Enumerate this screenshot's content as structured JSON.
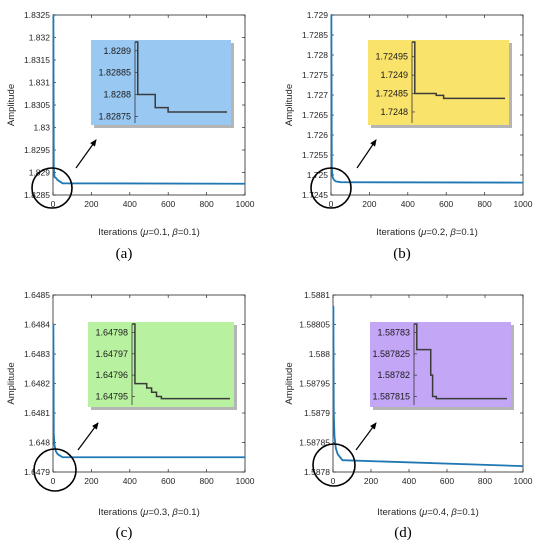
{
  "figure": {
    "panels": [
      "(a)",
      "(b)",
      "(c)",
      "(d)"
    ]
  },
  "chart_data": [
    {
      "type": "line",
      "panel_label": "(a)",
      "xlabel_parts": [
        "Iterations (",
        "μ",
        "=0.1, ",
        "β",
        "=0.1)"
      ],
      "ylabel": "Amplitude",
      "xlim": [
        0,
        1000
      ],
      "ylim": [
        1.8285,
        1.8325
      ],
      "xticks": [
        0,
        200,
        400,
        600,
        800,
        1000
      ],
      "yticks": [
        1.8285,
        1.829,
        1.8295,
        1.83,
        1.8305,
        1.831,
        1.8315,
        1.832,
        1.8325
      ],
      "ytick_labels": [
        "1.8285",
        "1.829",
        "1.8295",
        "1.83",
        "1.8305",
        "1.831",
        "1.8315",
        "1.832",
        "1.8325"
      ],
      "series": [
        {
          "color": "#1f77b4",
          "x": [
            0,
            2,
            4,
            8,
            15,
            25,
            50,
            1000
          ],
          "y": [
            1.8325,
            1.8325,
            1.8291,
            1.8289,
            1.82888,
            1.82883,
            1.82876,
            1.82875
          ]
        }
      ],
      "inset": {
        "color": "#99c9f2",
        "xlim": [
          0,
          1000
        ],
        "ylim": [
          1.828735,
          1.82892
        ],
        "yticks": [
          1.8289,
          1.82885,
          1.8288,
          1.82875
        ],
        "ytick_labels": [
          "1.8289",
          "1.82885",
          "1.8288",
          "1.82875"
        ],
        "x": [
          0,
          30,
          30,
          220,
          220,
          360,
          360,
          1000
        ],
        "y": [
          1.82892,
          1.82892,
          1.8288,
          1.8288,
          1.82877,
          1.82877,
          1.82876,
          1.82876
        ]
      }
    },
    {
      "type": "line",
      "panel_label": "(b)",
      "xlabel_parts": [
        "Iterations (",
        "μ",
        "=0.2, ",
        "β",
        "=0.1)"
      ],
      "ylabel": "Amplitude",
      "xlim": [
        0,
        1000
      ],
      "ylim": [
        1.7245,
        1.729
      ],
      "xticks": [
        0,
        200,
        400,
        600,
        800,
        1000
      ],
      "yticks": [
        1.7245,
        1.725,
        1.7255,
        1.726,
        1.7265,
        1.727,
        1.7275,
        1.728,
        1.7285,
        1.729
      ],
      "ytick_labels": [
        "1.7245",
        "1.725",
        "1.7255",
        "1.726",
        "1.7265",
        "1.727",
        "1.7275",
        "1.728",
        "1.7285",
        "1.729"
      ],
      "series": [
        {
          "color": "#1f77b4",
          "x": [
            0,
            2,
            4,
            8,
            15,
            25,
            50,
            1000
          ],
          "y": [
            1.729,
            1.729,
            1.7252,
            1.72495,
            1.72488,
            1.72484,
            1.72482,
            1.72481
          ]
        }
      ],
      "inset": {
        "color": "#fae36b",
        "xlim": [
          0,
          1000
        ],
        "ylim": [
          1.72477,
          1.72499
        ],
        "yticks": [
          1.72495,
          1.7249,
          1.72485,
          1.7248
        ],
        "ytick_labels": [
          "1.72495",
          "1.7249",
          "1.72485",
          "1.7248"
        ],
        "x": [
          0,
          30,
          30,
          260,
          260,
          340,
          340,
          1000
        ],
        "y": [
          1.72499,
          1.72499,
          1.72485,
          1.72485,
          1.724845,
          1.724845,
          1.724837,
          1.724837
        ]
      }
    },
    {
      "type": "line",
      "panel_label": "(c)",
      "xlabel_parts": [
        "Iterations (",
        "μ",
        "=0.3, ",
        "β",
        "=0.1)"
      ],
      "ylabel": "Amplitude",
      "xlim": [
        0,
        1000
      ],
      "ylim": [
        1.6479,
        1.6485
      ],
      "xticks": [
        0,
        200,
        400,
        600,
        800,
        1000
      ],
      "yticks": [
        1.6479,
        1.648,
        1.6481,
        1.6482,
        1.6483,
        1.6484,
        1.6485
      ],
      "ytick_labels": [
        "1.6479",
        "1.648",
        "1.6481",
        "1.6482",
        "1.6483",
        "1.6484",
        "1.6485"
      ],
      "series": [
        {
          "color": "#1f77b4",
          "x": [
            0,
            2,
            4,
            8,
            15,
            25,
            50,
            1000
          ],
          "y": [
            1.6484,
            1.6484,
            1.64803,
            1.64799,
            1.64797,
            1.64796,
            1.64795,
            1.64795
          ]
        }
      ],
      "inset": {
        "color": "#b8f2a0",
        "xlim": [
          0,
          1000
        ],
        "ylim": [
          1.647946,
          1.647984
        ],
        "yticks": [
          1.64798,
          1.64797,
          1.64796,
          1.64795
        ],
        "ytick_labels": [
          "1.64798",
          "1.64797",
          "1.64796",
          "1.64795"
        ],
        "x": [
          0,
          30,
          30,
          150,
          150,
          200,
          200,
          250,
          250,
          300,
          300,
          1000
        ],
        "y": [
          1.647984,
          1.647984,
          1.647956,
          1.647956,
          1.647954,
          1.647954,
          1.647952,
          1.647952,
          1.64795,
          1.64795,
          1.647949,
          1.647949
        ]
      }
    },
    {
      "type": "line",
      "panel_label": "(d)",
      "xlabel_parts": [
        "Iterations (",
        "μ",
        "=0.4, ",
        "β",
        "=0.1)"
      ],
      "ylabel": "Amplitude",
      "xlim": [
        0,
        1000
      ],
      "ylim": [
        1.5878,
        1.5881
      ],
      "xticks": [
        0,
        200,
        400,
        600,
        800,
        1000
      ],
      "yticks": [
        1.5878,
        1.58785,
        1.5879,
        1.58795,
        1.588,
        1.58805,
        1.5881
      ],
      "ytick_labels": [
        "1.5878",
        "1.58785",
        "1.5879",
        "1.58795",
        "1.588",
        "1.58805",
        "1.5881"
      ],
      "series": [
        {
          "color": "#1f77b4",
          "x": [
            0,
            2,
            4,
            8,
            15,
            25,
            50,
            1000
          ],
          "y": [
            1.58808,
            1.58808,
            1.5879,
            1.58786,
            1.58784,
            1.58783,
            1.58782,
            1.58781
          ]
        }
      ],
      "inset": {
        "color": "#c4a6f7",
        "xlim": [
          0,
          1000
        ],
        "ylim": [
          1.587813,
          1.587832
        ],
        "yticks": [
          1.58783,
          1.587825,
          1.58782,
          1.587815
        ],
        "ytick_labels": [
          "1.58783",
          "1.587825",
          "1.58782",
          "1.587815"
        ],
        "x": [
          0,
          30,
          30,
          180,
          180,
          200,
          200,
          240,
          240,
          1000
        ],
        "y": [
          1.587832,
          1.587832,
          1.587826,
          1.587826,
          1.58782,
          1.58782,
          1.587815,
          1.587815,
          1.5878145,
          1.5878145
        ]
      }
    }
  ]
}
